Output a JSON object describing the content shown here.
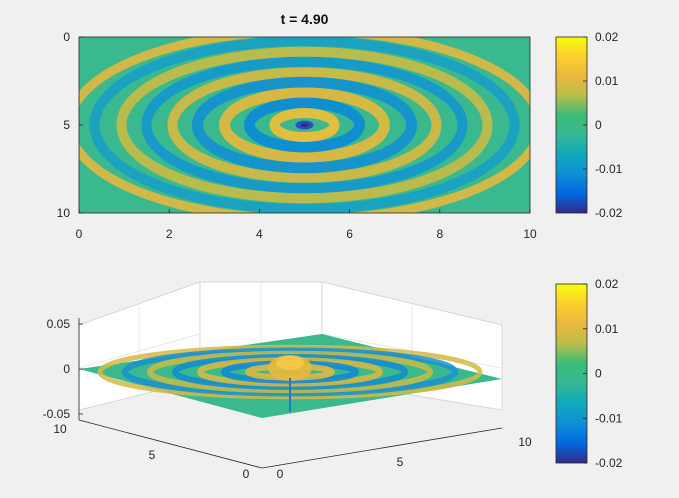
{
  "chart_data": [
    {
      "type": "heatmap",
      "title": "t = 4.90",
      "xlabel": "",
      "ylabel": "",
      "xlim": [
        0,
        10
      ],
      "ylim": [
        0,
        10
      ],
      "y_reversed": true,
      "xticks": [
        "0",
        "2",
        "4",
        "6",
        "8",
        "10"
      ],
      "yticks": [
        "0",
        "5",
        "10"
      ],
      "source_center": [
        5,
        5
      ],
      "colormap": "parula",
      "clim": [
        -0.02,
        0.02
      ],
      "colorbar_ticks": [
        "0.02",
        "0.01",
        "0",
        "-0.01",
        "-0.02"
      ],
      "colorbar_position": "right"
    },
    {
      "type": "surface",
      "title": "",
      "xlim": [
        0,
        10
      ],
      "ylim": [
        0,
        10
      ],
      "zlim": [
        -0.05,
        0.05
      ],
      "xticks": [
        "0",
        "5",
        "10"
      ],
      "yticks": [
        "0",
        "5",
        "10"
      ],
      "zticks": [
        "0.05",
        "0",
        "-0.05"
      ],
      "grid": true,
      "colormap": "parula",
      "clim": [
        -0.02,
        0.02
      ],
      "colorbar_ticks": [
        "0.02",
        "0.01",
        "0",
        "-0.01",
        "-0.02"
      ],
      "colorbar_position": "right"
    }
  ],
  "colors": {
    "background": "#f0f0f0",
    "axes_background": "#ffffff",
    "parula": [
      "#352a87",
      "#0268e1",
      "#108ed2",
      "#0fa9bc",
      "#35b792",
      "#3cbc76",
      "#b9bc4b",
      "#e9b93c",
      "#fbd02d",
      "#f9fb0e"
    ]
  }
}
